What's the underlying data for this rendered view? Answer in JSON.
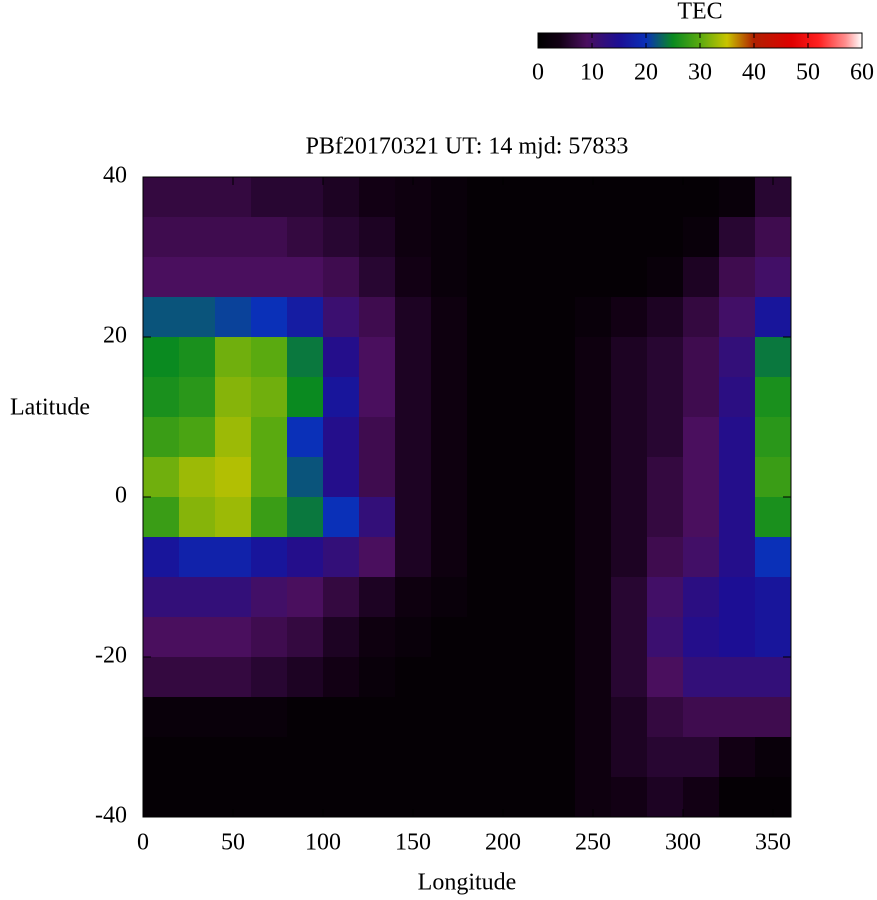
{
  "chart_data": {
    "type": "heatmap",
    "title": "PBf20170321  UT: 14  mjd: 57833",
    "x_label": "Longitude",
    "y_label": "Latitude",
    "colorbar_label": "TEC",
    "x": [
      10,
      30,
      50,
      70,
      90,
      110,
      130,
      150,
      170,
      190,
      210,
      230,
      250,
      270,
      290,
      310,
      330,
      350
    ],
    "y": [
      37.5,
      32.5,
      27.5,
      22.5,
      17.5,
      12.5,
      7.5,
      2.5,
      -2.5,
      -7.5,
      -12.5,
      -17.5,
      -22.5,
      -27.5,
      -32.5,
      -37.5
    ],
    "z": [
      [
        7,
        7,
        7,
        6,
        6,
        5,
        4,
        3,
        2,
        1,
        1,
        1,
        1,
        1,
        1,
        1,
        2,
        6
      ],
      [
        8,
        8,
        8,
        8,
        7,
        6,
        5,
        3,
        2,
        1,
        1,
        1,
        1,
        1,
        1,
        2,
        6,
        8
      ],
      [
        9,
        9,
        9,
        9,
        9,
        8,
        6,
        4,
        2,
        1,
        1,
        1,
        1,
        1,
        2,
        5,
        8,
        10
      ],
      [
        22,
        22,
        21,
        20,
        17,
        11,
        8,
        5,
        3,
        1,
        1,
        1,
        2,
        4,
        5,
        7,
        10,
        16
      ],
      [
        25,
        26,
        31,
        30,
        24,
        14,
        9,
        5,
        3,
        1,
        1,
        1,
        3,
        5,
        6,
        8,
        12,
        24
      ],
      [
        26,
        27,
        32,
        31,
        25,
        16,
        9,
        5,
        3,
        1,
        1,
        1,
        3,
        5,
        6,
        8,
        13,
        26
      ],
      [
        28,
        29,
        33,
        30,
        20,
        14,
        8,
        5,
        3,
        1,
        1,
        1,
        3,
        5,
        6,
        9,
        14,
        27
      ],
      [
        31,
        33,
        34,
        30,
        22,
        14,
        8,
        5,
        3,
        1,
        1,
        1,
        3,
        5,
        7,
        9,
        14,
        28
      ],
      [
        28,
        32,
        33,
        28,
        24,
        20,
        12,
        5,
        3,
        1,
        1,
        1,
        3,
        5,
        7,
        9,
        14,
        26
      ],
      [
        16,
        18,
        18,
        16,
        14,
        12,
        9,
        5,
        3,
        1,
        1,
        1,
        3,
        5,
        8,
        10,
        14,
        20
      ],
      [
        12,
        12,
        12,
        10,
        9,
        7,
        5,
        3,
        2,
        1,
        1,
        1,
        3,
        6,
        10,
        13,
        15,
        16
      ],
      [
        9,
        9,
        9,
        8,
        7,
        5,
        3,
        2,
        1,
        1,
        1,
        1,
        3,
        6,
        11,
        14,
        15,
        16
      ],
      [
        7,
        7,
        7,
        6,
        5,
        4,
        2,
        1,
        1,
        1,
        1,
        1,
        3,
        6,
        9,
        12,
        12,
        12
      ],
      [
        2,
        2,
        2,
        2,
        1,
        1,
        1,
        1,
        1,
        1,
        1,
        1,
        3,
        5,
        7,
        8,
        8,
        8
      ],
      [
        1,
        1,
        1,
        1,
        1,
        1,
        1,
        1,
        1,
        1,
        1,
        1,
        3,
        5,
        6,
        6,
        4,
        2
      ],
      [
        1,
        1,
        1,
        1,
        1,
        1,
        1,
        1,
        1,
        1,
        1,
        1,
        3,
        4,
        5,
        4,
        1,
        1
      ]
    ],
    "xlim": [
      0,
      360
    ],
    "xticks": [
      0,
      50,
      100,
      150,
      200,
      250,
      300,
      350
    ],
    "ylim": [
      -40,
      40
    ],
    "yticks": [
      40,
      20,
      0,
      -20,
      -40
    ],
    "clim": [
      0,
      60
    ],
    "cticks": [
      0,
      10,
      20,
      30,
      40,
      50,
      60
    ],
    "colorscale": [
      [
        0,
        "#000000"
      ],
      [
        4,
        "#120014"
      ],
      [
        9,
        "#4a0f5e"
      ],
      [
        15,
        "#1c0e94"
      ],
      [
        20,
        "#0a30b8"
      ],
      [
        25,
        "#0a8a20"
      ],
      [
        30,
        "#5aaa10"
      ],
      [
        35,
        "#c8c400"
      ],
      [
        40,
        "#b02000"
      ],
      [
        47,
        "#e00000"
      ],
      [
        52,
        "#ff2020"
      ],
      [
        57,
        "#ff9090"
      ],
      [
        60,
        "#ffffff"
      ]
    ]
  }
}
